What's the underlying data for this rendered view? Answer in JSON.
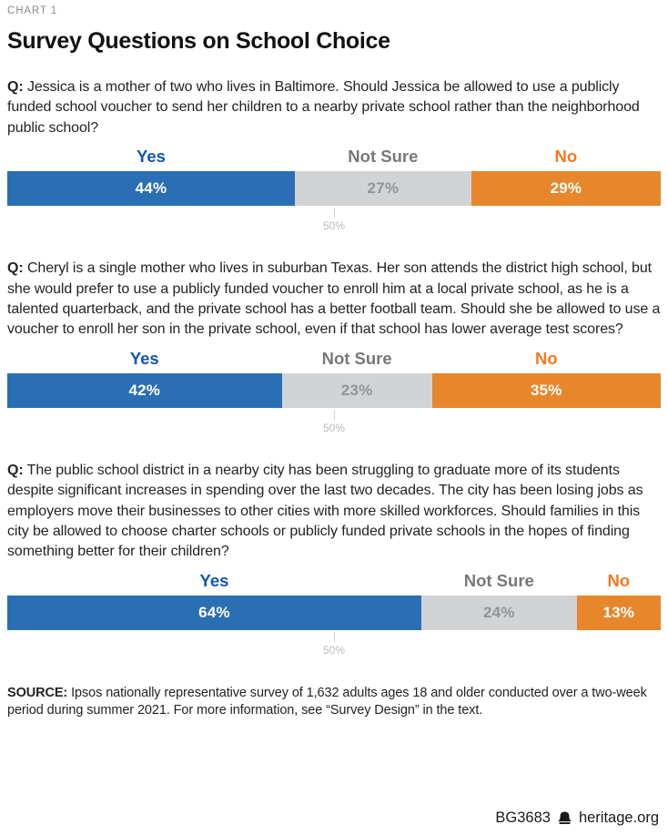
{
  "header": {
    "chart_label": "CHART 1",
    "title": "Survey Questions on School Choice"
  },
  "q_prefix": "Q:",
  "chart_data": {
    "type": "bar",
    "subtype": "horizontal-stacked",
    "unit": "%",
    "categories": [
      "Yes",
      "Not Sure",
      "No"
    ],
    "axis_marker": {
      "value": 50,
      "label": "50%"
    },
    "legend_position": "above-segments",
    "colors": {
      "yes_bar": "#2a6fb4",
      "not_sure_bar": "#d2d3d4",
      "no_bar": "#e8862c",
      "yes_label": "#1158a8",
      "not_sure_label": "#77787a",
      "no_label": "#f4781f",
      "pct_on_color": "#ffffff",
      "pct_on_gray": "#929497"
    },
    "questions": [
      {
        "text": "Jessica is a mother of two who lives in Baltimore. Should Jessica be allowed to use a publicly funded school voucher to send her children to a nearby private school rather than the neighborhood public school?",
        "values": [
          44,
          27,
          29
        ]
      },
      {
        "text": "Cheryl is a single mother who lives in suburban Texas. Her son attends the district high school, but she would prefer to use a publicly funded voucher to enroll him at a local private school, as he is a talented quarterback, and the private school has a better football team. Should she be allowed to use a voucher to enroll her son in the private school, even if that school has lower average test scores?",
        "values": [
          42,
          23,
          35
        ]
      },
      {
        "text": "The public school district in a nearby city has been struggling to graduate more of its students despite significant increases in spending over the last two decades. The city has been losing jobs as employers move their businesses to other cities with more skilled workforces. Should families in this city be allowed to choose charter schools or publicly funded private schools in the hopes of finding something better for their children?",
        "values": [
          64,
          24,
          13
        ]
      }
    ]
  },
  "footer": {
    "source_label": "SOURCE:",
    "source_text": "Ipsos nationally representative survey of 1,632 adults ages 18 and older conducted over a two-week period during summer 2021. For more information, see “Survey Design” in the text.",
    "report_id": "BG3683",
    "site": "heritage.org"
  }
}
